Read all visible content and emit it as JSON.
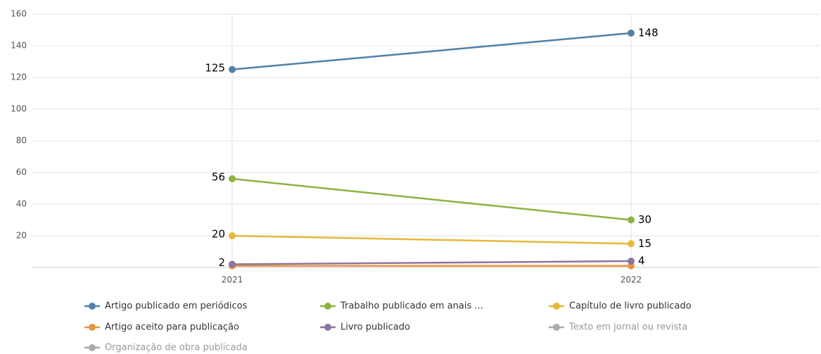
{
  "chart_data": {
    "type": "line",
    "categories": [
      "2021",
      "2022"
    ],
    "series": [
      {
        "name": "Artigo publicado em periódicos",
        "color": "#5080aa",
        "values": [
          125,
          148
        ],
        "show_labels": true
      },
      {
        "name": "Trabalho publicado em anais ...",
        "color": "#8db33f",
        "values": [
          56,
          30
        ],
        "show_labels": true
      },
      {
        "name": "Capítulo de livro publicado",
        "color": "#e6b93a",
        "values": [
          20,
          15
        ],
        "show_labels": true
      },
      {
        "name": "Artigo aceito para publicação",
        "color": "#e8963f",
        "values": [
          1,
          1
        ],
        "show_labels": false
      },
      {
        "name": "Livro publicado",
        "color": "#8d74a0",
        "values": [
          2,
          4
        ],
        "show_labels": true
      },
      {
        "name": "Texto em jornal ou revista",
        "color": "#999999",
        "values": [
          null,
          null
        ],
        "visible": false
      },
      {
        "name": "Organização de obra publicada",
        "color": "#999999",
        "values": [
          null,
          null
        ],
        "visible": false
      }
    ],
    "ylim": [
      0,
      160
    ],
    "yticks": [
      20,
      40,
      60,
      80,
      100,
      120,
      140,
      160
    ],
    "grid": true
  }
}
